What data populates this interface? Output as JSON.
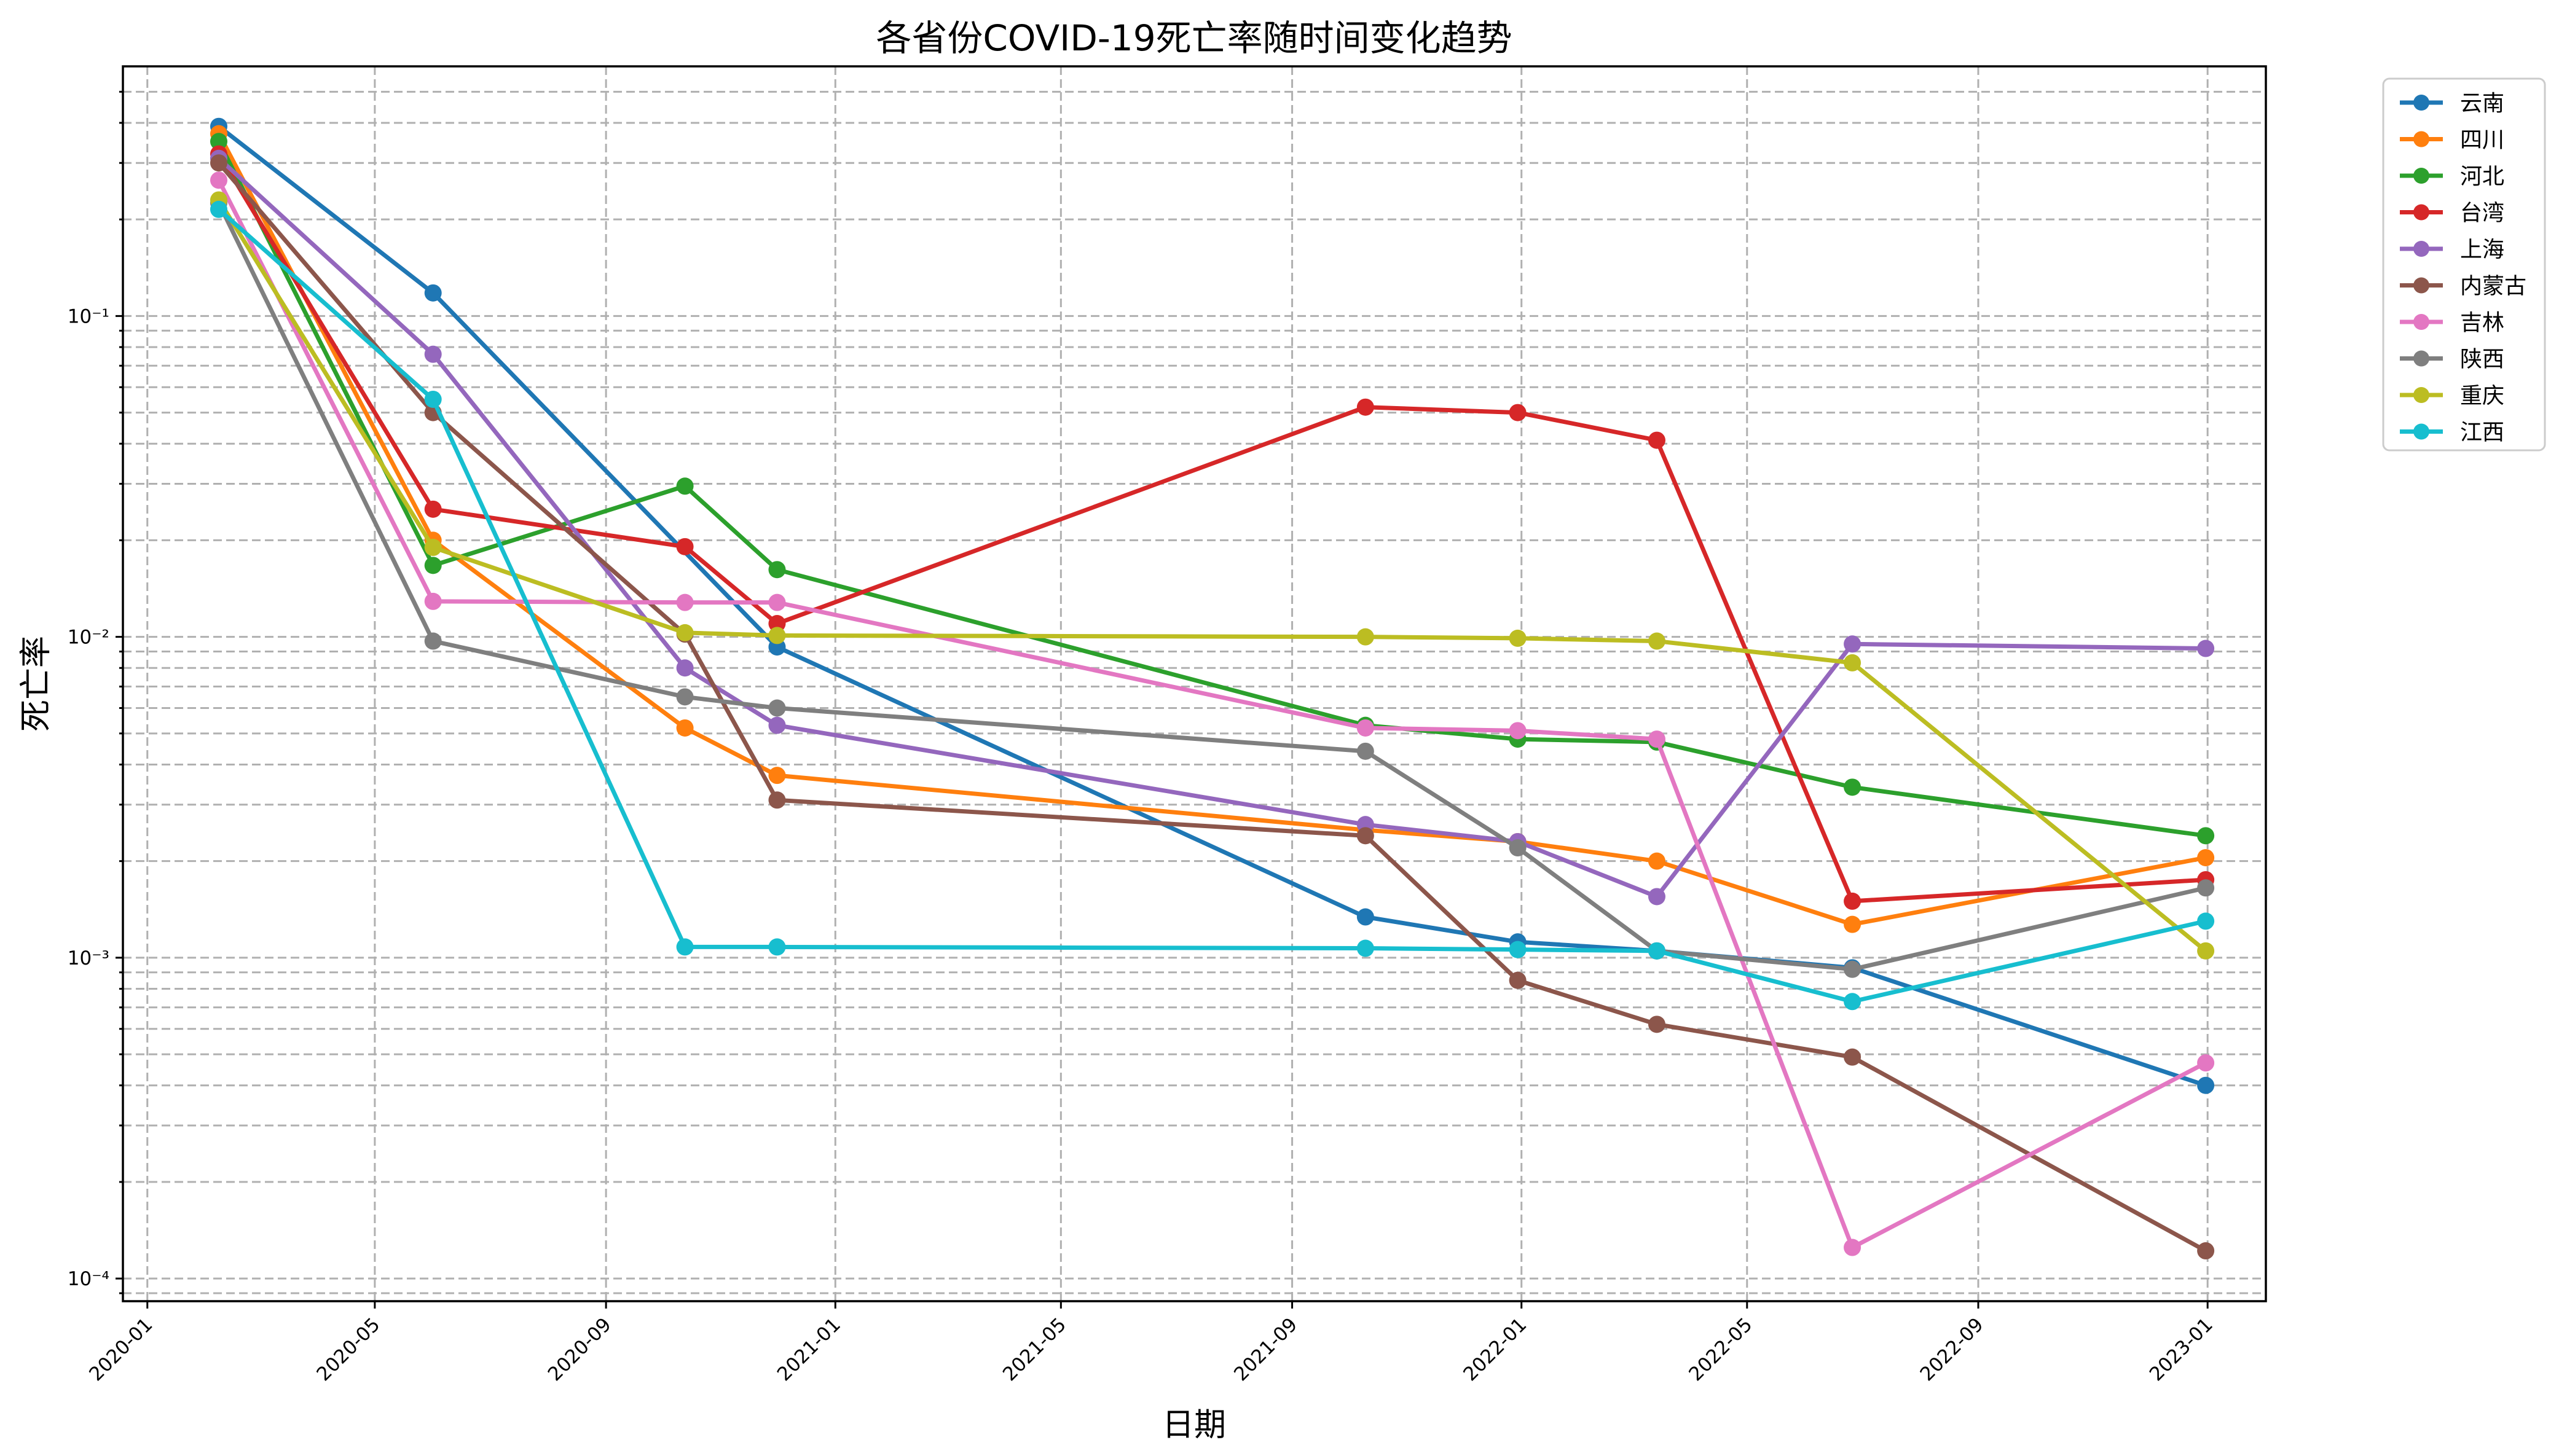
{
  "chart_data": {
    "type": "line",
    "title": "各省份COVID-19死亡率随时间变化趋势",
    "xlabel": "日期",
    "ylabel": "死亡率",
    "yscale": "log",
    "ylim": [
      8.5e-05,
      0.6
    ],
    "xlim": [
      "2019-12-19",
      "2023-02-01"
    ],
    "grid": true,
    "legend_position": "outside-top-right",
    "x_ticks": [
      "2020-01",
      "2020-05",
      "2020-09",
      "2021-01",
      "2021-05",
      "2021-09",
      "2022-01",
      "2022-05",
      "2022-09",
      "2023-01"
    ],
    "y_ticks": [
      {
        "value": 0.1,
        "label": "10⁻¹"
      },
      {
        "value": 0.01,
        "label": "10⁻²"
      },
      {
        "value": 0.001,
        "label": "10⁻³"
      },
      {
        "value": 0.0001,
        "label": "10⁻⁴"
      }
    ],
    "x": [
      "2020-02-08",
      "2020-06-01",
      "2020-10-13",
      "2020-12-01",
      "2021-10-10",
      "2021-12-30",
      "2022-03-14",
      "2022-06-26",
      "2022-12-31"
    ],
    "series": [
      {
        "name": "云南",
        "color": "#1f77b4",
        "values": [
          0.39,
          0.118,
          null,
          0.0093,
          0.00134,
          0.00112,
          0.00105,
          0.00093,
          0.0004
        ]
      },
      {
        "name": "四川",
        "color": "#ff7f0e",
        "values": [
          0.37,
          0.02,
          0.0052,
          0.0037,
          0.0025,
          0.0023,
          0.002,
          0.00127,
          0.00205
        ]
      },
      {
        "name": "河北",
        "color": "#2ca02c",
        "values": [
          0.35,
          0.0167,
          0.0295,
          0.0162,
          0.0053,
          0.0048,
          0.0047,
          0.0034,
          0.0024
        ]
      },
      {
        "name": "台湾",
        "color": "#d62728",
        "values": [
          0.32,
          0.025,
          0.0191,
          0.011,
          0.052,
          0.05,
          0.041,
          0.0015,
          0.00175
        ]
      },
      {
        "name": "上海",
        "color": "#9467bd",
        "values": [
          0.31,
          0.076,
          0.008,
          0.0053,
          0.0026,
          0.0023,
          0.00155,
          0.0095,
          0.0092
        ]
      },
      {
        "name": "内蒙古",
        "color": "#8c564b",
        "values": [
          0.3,
          0.05,
          0.0102,
          0.0031,
          0.0024,
          0.00085,
          0.00062,
          0.00049,
          0.000122
        ]
      },
      {
        "name": "吉林",
        "color": "#e377c2",
        "values": [
          0.265,
          0.0129,
          0.0128,
          0.0128,
          0.0052,
          0.0051,
          0.0048,
          0.000125,
          0.00047
        ]
      },
      {
        "name": "陕西",
        "color": "#7f7f7f",
        "values": [
          0.225,
          0.0097,
          0.0065,
          0.006,
          0.0044,
          0.0022,
          0.00105,
          0.00092,
          0.00165
        ]
      },
      {
        "name": "重庆",
        "color": "#bcbd22",
        "values": [
          0.23,
          0.019,
          0.0103,
          0.0101,
          0.01,
          0.0099,
          0.0097,
          0.0083,
          0.00105
        ]
      },
      {
        "name": "江西",
        "color": "#17becf",
        "values": [
          0.215,
          0.055,
          0.00108,
          0.00108,
          0.00107,
          0.00106,
          0.00105,
          0.00073,
          0.0013
        ]
      }
    ]
  }
}
